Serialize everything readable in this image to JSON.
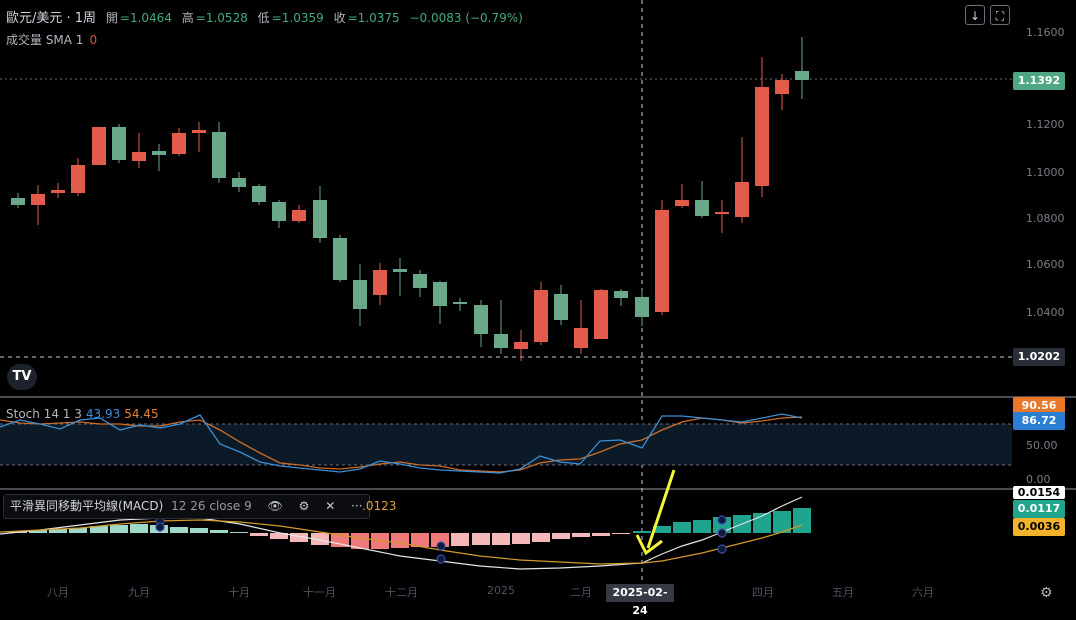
{
  "header": {
    "symbol": "歐元/美元 · 1周",
    "open_label": "開",
    "open": "=1.0464",
    "high_label": "高",
    "high": "=1.0528",
    "low_label": "低",
    "low": "=1.0359",
    "close_label": "收",
    "close": "=1.0375",
    "change": "−0.0083 (−0.79%)"
  },
  "volume": {
    "label": "成交量 SMA 1",
    "value": "0"
  },
  "toolbar": {
    "down_icon": "arrow-down-icon",
    "fullscreen_icon": "fullscreen-icon"
  },
  "price_axis": [
    "1.1600",
    "1.1200",
    "1.1000",
    "1.0800",
    "1.0600",
    "1.0400"
  ],
  "price_tags": {
    "current": "1.1392",
    "hline": "1.0202"
  },
  "stoch": {
    "label": "Stoch 14 1 3",
    "k": "43.93",
    "d": "54.45",
    "axis": [
      "50.00",
      "0.00"
    ],
    "tag_d": "90.56",
    "tag_k": "86.72"
  },
  "macd": {
    "label": "平滑異同移動平均線(MACD)",
    "params": "12 26 close 9",
    "extra_value": ".0123",
    "tag_top": "0.0154",
    "tag_hist": "0.0117",
    "tag_signal": "0.0036"
  },
  "time_axis": [
    "八月",
    "九月",
    "十月",
    "十一月",
    "十二月",
    "2025",
    "二月",
    "四月",
    "五月",
    "六月"
  ],
  "crosshair_date": "2025-02-24",
  "logo": "TV",
  "colors": {
    "up": "#e25b4b",
    "down": "#6aa88a",
    "accent": "#2ab8a0",
    "annotation": "#f5f53a"
  }
}
